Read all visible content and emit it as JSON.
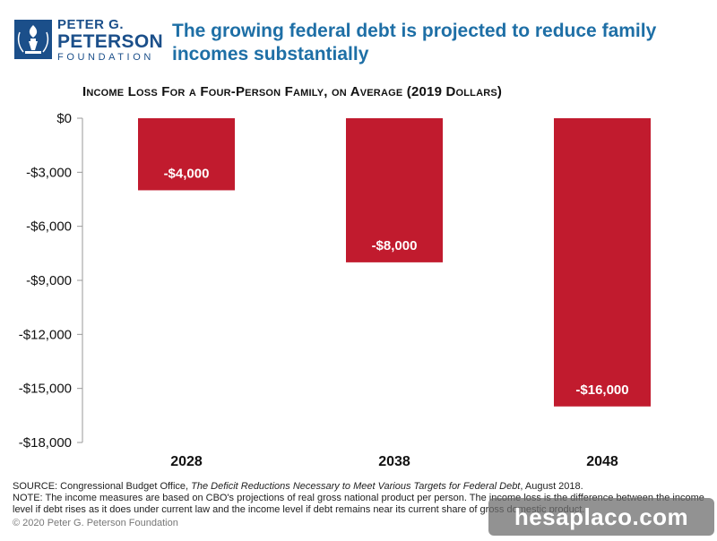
{
  "logo": {
    "line1": "PETER G.",
    "line2": "PETERSON",
    "line3": "FOUNDATION"
  },
  "headline": "The growing federal debt is projected to reduce family incomes substantially",
  "colors": {
    "bar": "#c11b2e",
    "headline": "#1e6fa6",
    "brand": "#1b4f8a"
  },
  "chart_data": {
    "type": "bar",
    "title": "Income Loss For a Four-Person Family, on Average (2019 Dollars)",
    "categories": [
      "2028",
      "2038",
      "2048"
    ],
    "values": [
      -4000,
      -8000,
      -16000
    ],
    "value_labels": [
      "-$4,000",
      "-$8,000",
      "-$16,000"
    ],
    "ylim": [
      -18000,
      0
    ],
    "yticks": [
      0,
      -3000,
      -6000,
      -9000,
      -12000,
      -15000,
      -18000
    ],
    "ytick_labels": [
      "$0",
      "-$3,000",
      "-$6,000",
      "-$9,000",
      "-$12,000",
      "-$15,000",
      "-$18,000"
    ],
    "xlabel": "",
    "ylabel": "",
    "grid": false
  },
  "footnotes": {
    "source_prefix": "SOURCE: Congressional Budget Office, ",
    "source_italic": "The Deficit Reductions Necessary to Meet Various Targets for Federal Debt",
    "source_suffix": ", August 2018.",
    "note": "NOTE: The income measures are based on CBO's projections of real gross national product per person. The income loss is the difference between the income level if debt rises as it does under current law and the income level if debt remains near its current share of gross domestic product."
  },
  "copyright": "© 2020 Peter G. Peterson Foundation",
  "watermark": "hesaplaco.com"
}
